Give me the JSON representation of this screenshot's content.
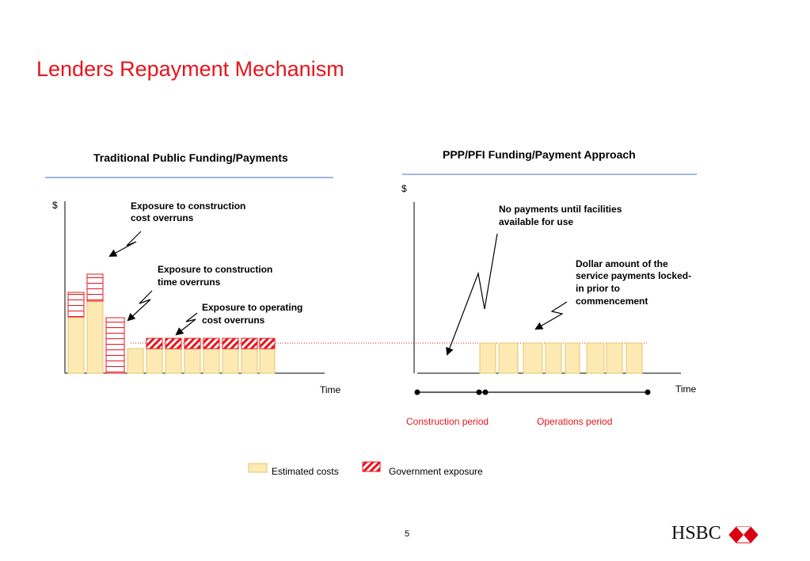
{
  "title": "Lenders Repayment Mechanism",
  "left": {
    "heading": "Traditional Public Funding/Payments",
    "y_label": "$",
    "x_label": "Time",
    "annotations": [
      {
        "lines": [
          "Exposure to construction",
          "cost overruns"
        ]
      },
      {
        "lines": [
          "Exposure to construction",
          "time overruns"
        ]
      },
      {
        "lines": [
          "Exposure to operating",
          "cost overruns"
        ]
      }
    ]
  },
  "right": {
    "heading": "PPP/PFI Funding/Payment Approach",
    "y_label": "$",
    "x_label": "Time",
    "annotations": [
      {
        "lines": [
          "No payments until facilities",
          "available for use"
        ]
      },
      {
        "lines": [
          "Dollar amount of the",
          "service payments locked-",
          "in prior to",
          "commencement"
        ]
      }
    ],
    "periods": {
      "construction": "Construction period",
      "operations": "Operations period"
    }
  },
  "legend": {
    "estimated": "Estimated costs",
    "exposure": "Government exposure"
  },
  "page_number": "5",
  "logo": "HSBC",
  "colors": {
    "title": "#e8141b",
    "bar_fill": "#fde9b2",
    "bar_stroke": "#e6c56b",
    "exposure": "#e8141b",
    "rule": "#4472c4"
  }
}
